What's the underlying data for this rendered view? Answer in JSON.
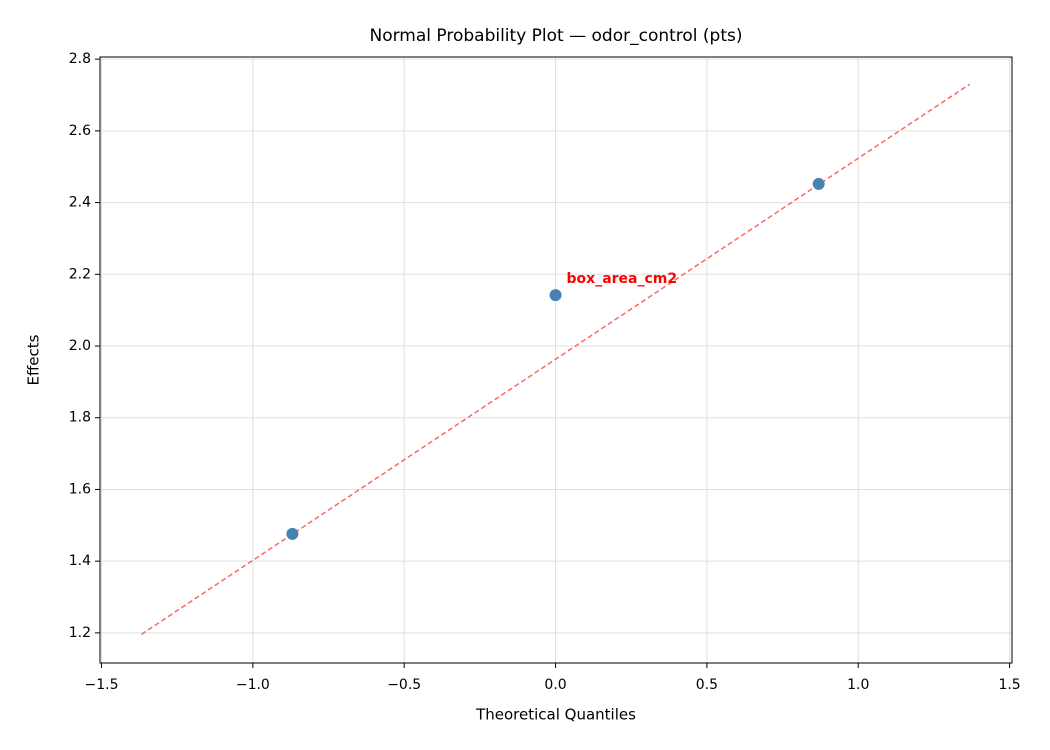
{
  "chart_data": {
    "type": "scatter",
    "title": "Normal Probability Plot — odor_control (pts)",
    "xlabel": "Theoretical Quantiles",
    "ylabel": "Effects",
    "x": [
      -0.8694,
      0,
      0.8694
    ],
    "values": [
      1.476,
      2.142,
      2.452
    ],
    "color": "#4682b4",
    "reference_line": {
      "x": [
        -1.368,
        1.368
      ],
      "y": [
        1.196,
        2.73
      ],
      "color": "#ff6666"
    },
    "annotations": [
      {
        "text": "box_area_cm2",
        "x": 0,
        "y": 2.142,
        "color": "#ff0000"
      }
    ],
    "xlim": [
      -1.505,
      1.508
    ],
    "ylim": [
      1.116,
      2.806
    ],
    "xticks": [
      {
        "value": -1.5,
        "label": "−1.5"
      },
      {
        "value": -1,
        "label": "−1.0"
      },
      {
        "value": -0.5,
        "label": "−0.5"
      },
      {
        "value": 0,
        "label": "0.0"
      },
      {
        "value": 0.5,
        "label": "0.5"
      },
      {
        "value": 1,
        "label": "1.0"
      },
      {
        "value": 1.5,
        "label": "1.5"
      }
    ],
    "yticks": [
      1.2,
      1.4,
      1.6,
      1.8,
      {
        "value": 2,
        "label": "2.0"
      },
      2.2,
      2.4,
      2.6,
      2.8
    ],
    "grid": true
  }
}
